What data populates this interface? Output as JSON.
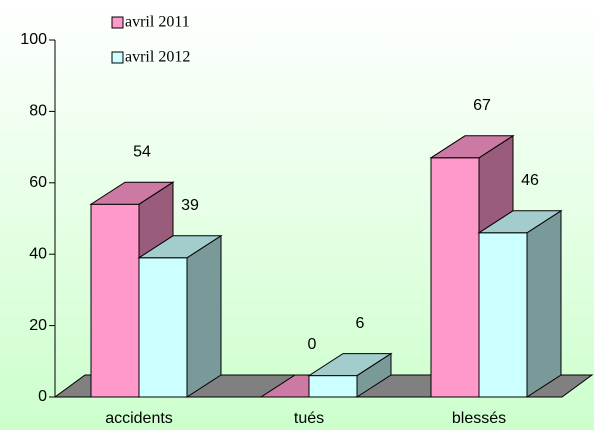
{
  "chart_data": {
    "type": "bar3d",
    "categories": [
      "accidents",
      "tués",
      "blessés"
    ],
    "series": [
      {
        "name": "avril 2011",
        "color": "#ff99cc",
        "values": [
          54,
          0,
          67
        ]
      },
      {
        "name": "avril 2012",
        "color": "#ccffff",
        "values": [
          39,
          6,
          46
        ]
      }
    ],
    "ylim": [
      0,
      100
    ],
    "yticks": [
      0,
      20,
      40,
      60,
      80,
      100
    ],
    "legend": "top-left"
  }
}
